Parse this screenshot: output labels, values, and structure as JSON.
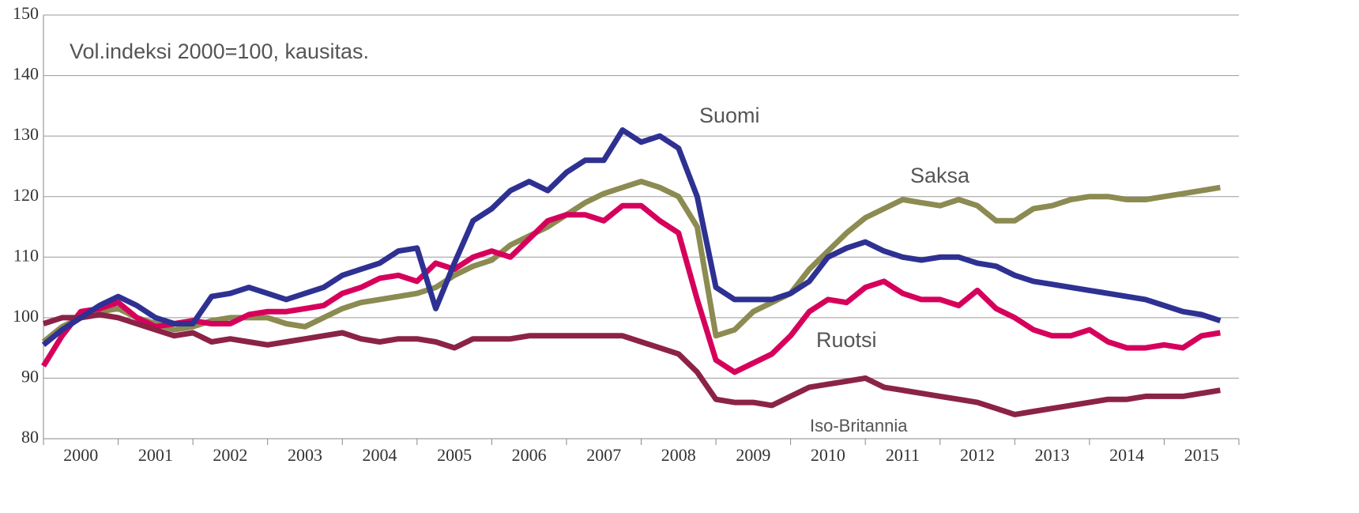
{
  "chart_data": {
    "type": "line",
    "subtitle": "Vol.indeksi 2000=100, kausitas.",
    "categories": [
      "2000",
      "2001",
      "2002",
      "2003",
      "2004",
      "2005",
      "2006",
      "2007",
      "2008",
      "2009",
      "2010",
      "2011",
      "2012",
      "2013",
      "2014",
      "2015"
    ],
    "x": [
      2000,
      2000.25,
      2000.5,
      2000.75,
      2001,
      2001.25,
      2001.5,
      2001.75,
      2002,
      2002.25,
      2002.5,
      2002.75,
      2003,
      2003.25,
      2003.5,
      2003.75,
      2004,
      2004.25,
      2004.5,
      2004.75,
      2005,
      2005.25,
      2005.5,
      2005.75,
      2006,
      2006.25,
      2006.5,
      2006.75,
      2007,
      2007.25,
      2007.5,
      2007.75,
      2008,
      2008.25,
      2008.5,
      2008.75,
      2009,
      2009.25,
      2009.5,
      2009.75,
      2010,
      2010.25,
      2010.5,
      2010.75,
      2011,
      2011.25,
      2011.5,
      2011.75,
      2012,
      2012.25,
      2012.5,
      2012.75,
      2013,
      2013.25,
      2013.5,
      2013.75,
      2014,
      2014.25,
      2014.5,
      2014.75,
      2015,
      2015.25,
      2015.5,
      2015.75
    ],
    "xlim": [
      2000,
      2016
    ],
    "ylim": [
      80,
      150
    ],
    "yticks": [
      80,
      90,
      100,
      110,
      120,
      130,
      140,
      150
    ],
    "grid": true,
    "series": [
      {
        "name": "Saksa",
        "color": "#8b8b52",
        "values": [
          96,
          98.5,
          100,
          101,
          101.5,
          100,
          99,
          98,
          98.5,
          99.5,
          100,
          100,
          100,
          99,
          98.5,
          100,
          101.5,
          102.5,
          103,
          103.5,
          104,
          105,
          107,
          108.5,
          109.5,
          112,
          113.5,
          115,
          117,
          119,
          120.5,
          121.5,
          122.5,
          121.5,
          120,
          115,
          97,
          98,
          101,
          102.5,
          104,
          108,
          111,
          114,
          116.5,
          118,
          119.5,
          119,
          118.5,
          119.5,
          118.5,
          116,
          116,
          118,
          118.5,
          119.5,
          120,
          120,
          119.5,
          119.5,
          120,
          120.5,
          121,
          121.5
        ]
      },
      {
        "name": "Ruotsi",
        "color": "#d6005c",
        "values": [
          92,
          97,
          101,
          101.5,
          102.5,
          100,
          98.5,
          99,
          99.5,
          99,
          99,
          100.5,
          101,
          101,
          101.5,
          102,
          104,
          105,
          106.5,
          107,
          106,
          109,
          108,
          110,
          111,
          110,
          113,
          116,
          117,
          117,
          116,
          118.5,
          118.5,
          116,
          114,
          103,
          93,
          91,
          92.5,
          94,
          97,
          101,
          103,
          102.5,
          105,
          106,
          104,
          103,
          103,
          102,
          104.5,
          101.5,
          100,
          98,
          97,
          97,
          98,
          96,
          95,
          95,
          95.5,
          95,
          97,
          97.5
        ]
      },
      {
        "name": "Iso-Britannia",
        "color": "#8b2346",
        "values": [
          99,
          100,
          100,
          100.5,
          100,
          99,
          98,
          97,
          97.5,
          96,
          96.5,
          96,
          95.5,
          96,
          96.5,
          97,
          97.5,
          96.5,
          96,
          96.5,
          96.5,
          96,
          95,
          96.5,
          96.5,
          96.5,
          97,
          97,
          97,
          97,
          97,
          97,
          96,
          95,
          94,
          91,
          86.5,
          86,
          86,
          85.5,
          87,
          88.5,
          89,
          89.5,
          90,
          88.5,
          88,
          87.5,
          87,
          86.5,
          86,
          85,
          84,
          84.5,
          85,
          85.5,
          86,
          86.5,
          86.5,
          87,
          87,
          87,
          87.5,
          88
        ]
      },
      {
        "name": "Suomi",
        "color": "#2e3192",
        "values": [
          95.5,
          98,
          100,
          102,
          103.5,
          102,
          100,
          99,
          99,
          103.5,
          104,
          105,
          104,
          103,
          104,
          105,
          107,
          108,
          109,
          111,
          111.5,
          101.5,
          109,
          116,
          118,
          121,
          122.5,
          121,
          124,
          126,
          126,
          131,
          129,
          130,
          128,
          120,
          105,
          103,
          103,
          103,
          104,
          106,
          110,
          111.5,
          112.5,
          111,
          110,
          109.5,
          110,
          110,
          109,
          108.5,
          107,
          106,
          105.5,
          105,
          104.5,
          104,
          103.5,
          103,
          102,
          101,
          100.5,
          99.5
        ]
      }
    ]
  }
}
